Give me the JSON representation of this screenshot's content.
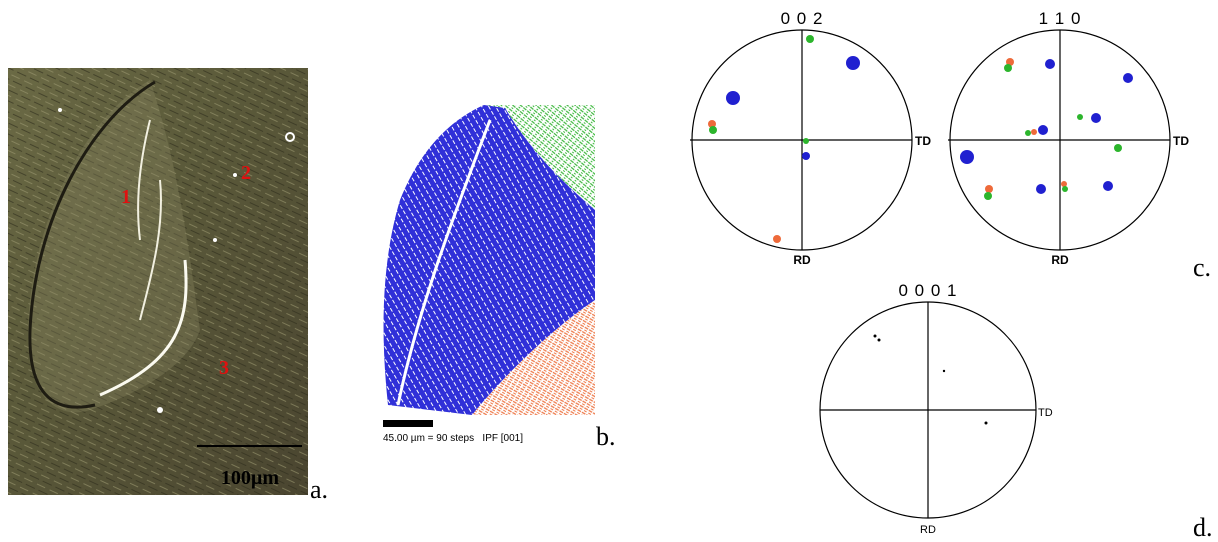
{
  "panel_a": {
    "grain_labels": [
      "1",
      "2",
      "3"
    ],
    "scale_bar": "100µm",
    "label": "a."
  },
  "panel_b": {
    "scale_text": "45.00 µm = 90 steps   IPF [001]",
    "label": "b."
  },
  "panel_c": {
    "pole_figures": [
      {
        "title": "0 0 2",
        "x_axis": "TD",
        "y_axis": "RD"
      },
      {
        "title": "1 1 0",
        "x_axis": "TD",
        "y_axis": "RD"
      }
    ],
    "label": "c."
  },
  "panel_d": {
    "pole_figure": {
      "title": "0 0 0 1",
      "x_axis": "TD",
      "y_axis": "RD"
    },
    "label": "d."
  }
}
